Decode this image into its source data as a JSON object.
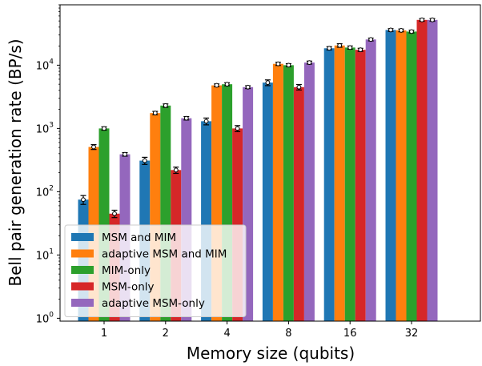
{
  "chart_data": {
    "type": "bar",
    "title": "",
    "xlabel": "Memory size (qubits)",
    "ylabel": "Bell pair generation rate (BP/s)",
    "yscale": "log",
    "ylim": [
      0.9,
      90000
    ],
    "y_ticks": [
      {
        "value": 1,
        "base": "10",
        "exp": "0"
      },
      {
        "value": 10,
        "base": "10",
        "exp": "1"
      },
      {
        "value": 100,
        "base": "10",
        "exp": "2"
      },
      {
        "value": 1000,
        "base": "10",
        "exp": "3"
      },
      {
        "value": 10000,
        "base": "10",
        "exp": "4"
      }
    ],
    "categories": [
      "1",
      "2",
      "4",
      "8",
      "16",
      "32"
    ],
    "grid": false,
    "legend_position": "lower-left",
    "error_bars": true,
    "series": [
      {
        "name": "MSM and MIM",
        "color": "#1f77b4",
        "values": [
          75,
          310,
          1300,
          5300,
          18500,
          36000
        ],
        "errors": [
          12,
          40,
          160,
          550,
          1100,
          1800
        ]
      },
      {
        "name": "adaptive MSM and MIM",
        "color": "#ff7f0e",
        "values": [
          510,
          1750,
          4800,
          10500,
          20500,
          35500
        ],
        "errors": [
          45,
          110,
          250,
          600,
          1300,
          1800
        ]
      },
      {
        "name": "MIM-only",
        "color": "#2ca02c",
        "values": [
          1000,
          2300,
          5000,
          10000,
          19000,
          34000
        ],
        "errors": [
          60,
          140,
          270,
          550,
          1100,
          1700
        ]
      },
      {
        "name": "MSM-only",
        "color": "#d62728",
        "values": [
          45,
          220,
          1000,
          4500,
          17500,
          52000
        ],
        "errors": [
          6,
          25,
          110,
          450,
          1000,
          2500
        ]
      },
      {
        "name": "adaptive MSM-only",
        "color": "#9467bd",
        "values": [
          390,
          1450,
          4500,
          11000,
          25500,
          52000
        ],
        "errors": [
          25,
          90,
          230,
          600,
          1300,
          2500
        ]
      }
    ]
  }
}
